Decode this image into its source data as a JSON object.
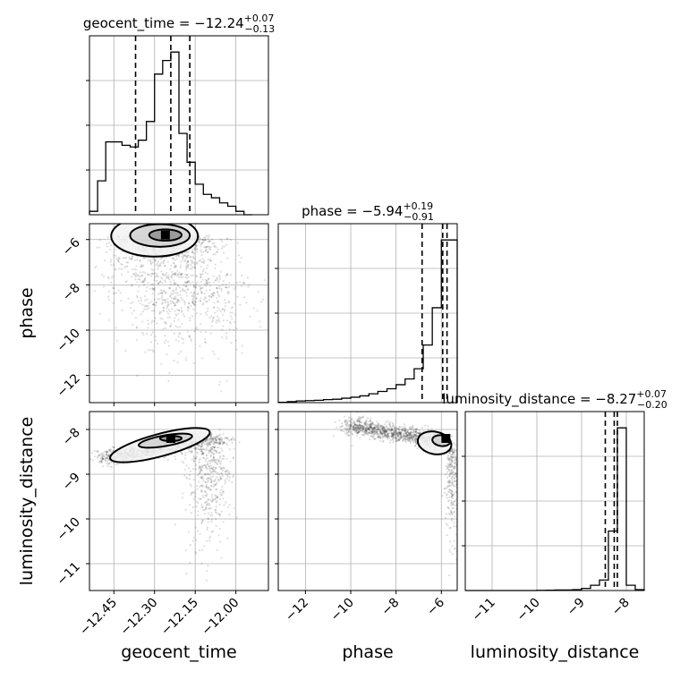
{
  "chart_data": {
    "type": "corner",
    "parameters": [
      "geocent_time",
      "phase",
      "luminosity_distance"
    ],
    "axis_labels": {
      "x": [
        "geocent_time",
        "phase",
        "luminosity_distance"
      ],
      "y": [
        "phase",
        "luminosity_distance"
      ]
    },
    "ranges": {
      "geocent_time": [
        -12.54,
        -11.88
      ],
      "phase": [
        -13.2,
        -5.3
      ],
      "luminosity_distance": [
        -11.6,
        -7.6
      ]
    },
    "ticks": {
      "geocent_time": [
        {
          "value": -12.45,
          "label": "−12.45"
        },
        {
          "value": -12.3,
          "label": "−12.30"
        },
        {
          "value": -12.15,
          "label": "−12.15"
        },
        {
          "value": -12.0,
          "label": "−12.00"
        }
      ],
      "phase": [
        {
          "value": -12,
          "label": "−12"
        },
        {
          "value": -10,
          "label": "−10"
        },
        {
          "value": -8,
          "label": "−8"
        },
        {
          "value": -6,
          "label": "−6"
        }
      ],
      "luminosity_distance": [
        {
          "value": -11,
          "label": "−11"
        },
        {
          "value": -10,
          "label": "−10"
        },
        {
          "value": -9,
          "label": "−9"
        },
        {
          "value": -8,
          "label": "−8"
        }
      ]
    },
    "titles": [
      {
        "param": "geocent_time",
        "text": "geocent_time = −12.24",
        "sup": "+0.07",
        "sub": "−0.13"
      },
      {
        "param": "phase",
        "text": "phase = −5.94",
        "sup": "+0.19",
        "sub": "−0.91"
      },
      {
        "param": "luminosity_distance",
        "text": "luminosity_distance = −8.27",
        "sup": "+0.07",
        "sub": "−0.20"
      }
    ],
    "quantiles": {
      "geocent_time": [
        -12.37,
        -12.24,
        -12.17
      ],
      "phase": [
        -6.85,
        -5.94,
        -5.75
      ],
      "luminosity_distance": [
        -8.47,
        -8.27,
        -8.2
      ]
    },
    "histograms": {
      "geocent_time": {
        "edges": [
          -12.54,
          -12.51,
          -12.48,
          -12.45,
          -12.42,
          -12.39,
          -12.36,
          -12.33,
          -12.3,
          -12.27,
          -12.24,
          -12.21,
          -12.18,
          -12.15,
          -12.12,
          -12.09,
          -12.06,
          -12.03,
          -12.0,
          -11.97,
          -11.94
        ],
        "counts": [
          2,
          20,
          43,
          43,
          41,
          40,
          44,
          55,
          83,
          91,
          96,
          48,
          31,
          18,
          12,
          10,
          7,
          5,
          2,
          0
        ]
      },
      "phase": {
        "edges": [
          -13.2,
          -12.8,
          -12.4,
          -12.0,
          -11.6,
          -11.2,
          -10.8,
          -10.4,
          -10.0,
          -9.6,
          -9.2,
          -8.8,
          -8.4,
          -8.0,
          -7.6,
          -7.2,
          -6.8,
          -6.4,
          -6.0,
          -5.6,
          -5.3
        ],
        "counts": [
          0.1,
          0.3,
          0.5,
          0.6,
          0.7,
          0.9,
          1.0,
          1.3,
          1.6,
          2.0,
          2.6,
          3.3,
          4.1,
          5.3,
          7.0,
          10,
          17,
          28,
          48,
          48
        ]
      },
      "luminosity_distance": {
        "edges": [
          -11.6,
          -11.4,
          -11.2,
          -11.0,
          -10.8,
          -10.6,
          -10.4,
          -10.2,
          -10.0,
          -9.8,
          -9.6,
          -9.4,
          -9.2,
          -9.0,
          -8.8,
          -8.6,
          -8.4,
          -8.2,
          -8.0,
          -7.8,
          -7.6
        ],
        "counts": [
          0,
          0,
          0,
          0,
          0,
          0,
          0,
          0,
          0.1,
          0.2,
          0.3,
          0.3,
          0.5,
          1.2,
          3,
          6,
          34,
          93,
          3,
          0.5
        ]
      }
    },
    "panels_2d": [
      {
        "x": "geocent_time",
        "y": "phase",
        "peak": [
          -12.26,
          -5.8
        ],
        "contours": [
          {
            "cx": -12.3,
            "cy": -5.85,
            "rx": 0.16,
            "ry": 0.9
          },
          {
            "cx": -12.28,
            "cy": -5.82,
            "rx": 0.11,
            "ry": 0.5
          },
          {
            "cx": -12.26,
            "cy": -5.8,
            "rx": 0.06,
            "ry": 0.25
          }
        ]
      },
      {
        "x": "geocent_time",
        "y": "luminosity_distance",
        "peak": [
          -12.24,
          -8.2
        ],
        "contours": [
          {
            "cx": -12.28,
            "cy": -8.35,
            "rx": 0.19,
            "ry": 0.25,
            "rot": -15
          },
          {
            "cx": -12.26,
            "cy": -8.25,
            "rx": 0.1,
            "ry": 0.12,
            "rot": -10
          },
          {
            "cx": -12.24,
            "cy": -8.2,
            "rx": 0.04,
            "ry": 0.06,
            "rot": 0
          }
        ]
      },
      {
        "x": "phase",
        "y": "luminosity_distance",
        "peak": [
          -5.8,
          -8.2
        ],
        "contours": [
          {
            "cx": -6.3,
            "cy": -8.3,
            "rx": 0.75,
            "ry": 0.25,
            "rot": 12
          },
          {
            "cx": -6.0,
            "cy": -8.25,
            "rx": 0.4,
            "ry": 0.12,
            "rot": 8
          },
          {
            "cx": -5.8,
            "cy": -8.2,
            "rx": 0.15,
            "ry": 0.06,
            "rot": 0
          }
        ]
      }
    ],
    "grid": true,
    "colors": {
      "line": "#000000",
      "grid": "#b0b0b0",
      "points": "#000000"
    }
  }
}
